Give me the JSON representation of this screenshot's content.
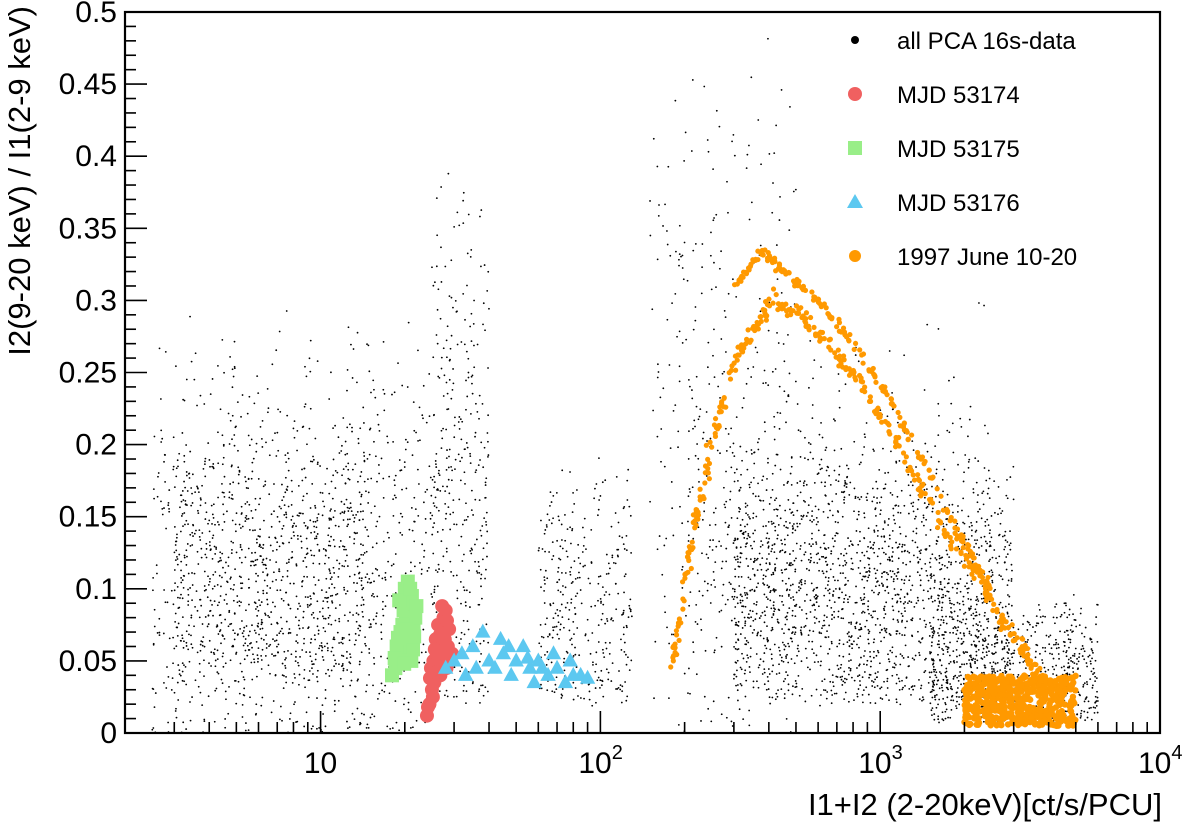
{
  "chart_data": {
    "type": "scatter",
    "title": "",
    "xlabel": "I1+I2 (2-20keV)[ct/s/PCU]",
    "ylabel": "I2(9-20 keV) / I1(2-9 keV)",
    "xscale": "log",
    "xlim": [
      2,
      10000
    ],
    "ylim": [
      0,
      0.5
    ],
    "x_ticks": [
      {
        "value": 10,
        "label": "10",
        "exp": ""
      },
      {
        "value": 100,
        "label": "10",
        "exp": "2"
      },
      {
        "value": 1000,
        "label": "10",
        "exp": "3"
      },
      {
        "value": 10000,
        "label": "10",
        "exp": "4"
      }
    ],
    "y_ticks": [
      {
        "value": 0,
        "label": "0"
      },
      {
        "value": 0.05,
        "label": "0.05"
      },
      {
        "value": 0.1,
        "label": "0.1"
      },
      {
        "value": 0.15,
        "label": "0.15"
      },
      {
        "value": 0.2,
        "label": "0.2"
      },
      {
        "value": 0.25,
        "label": "0.25"
      },
      {
        "value": 0.3,
        "label": "0.3"
      },
      {
        "value": 0.35,
        "label": "0.35"
      },
      {
        "value": 0.4,
        "label": "0.4"
      },
      {
        "value": 0.45,
        "label": "0.45"
      },
      {
        "value": 0.5,
        "label": "0.5"
      }
    ],
    "grid": false,
    "legend_position": "top-right",
    "series": [
      {
        "name": "all PCA 16s-data",
        "marker": "dot",
        "color": "#000000",
        "clusters": [
          {
            "x_range": [
              2.5,
              25
            ],
            "y_range": [
              0.0,
              0.3
            ],
            "count": 900
          },
          {
            "x_range": [
              3,
              15
            ],
            "y_range": [
              0.05,
              0.22
            ],
            "count": 700
          },
          {
            "x_range": [
              25,
              40
            ],
            "y_range": [
              0.02,
              0.4
            ],
            "count": 350
          },
          {
            "x_range": [
              60,
              130
            ],
            "y_range": [
              0.03,
              0.2
            ],
            "count": 350
          },
          {
            "x_range": [
              150,
              500
            ],
            "y_range": [
              0.0,
              0.5
            ],
            "count": 300
          },
          {
            "x_range": [
              300,
              3000
            ],
            "y_range": [
              0.03,
              0.2
            ],
            "count": 1500
          },
          {
            "x_range": [
              1500,
              6000
            ],
            "y_range": [
              0.01,
              0.1
            ],
            "count": 700
          },
          {
            "x_range": [
              200,
              2500
            ],
            "y_range": [
              0.1,
              0.3
            ],
            "count": 500
          }
        ]
      },
      {
        "name": "MJD 53174",
        "marker": "circle",
        "color": "#f06060",
        "points": [
          [
            24,
            0.012
          ],
          [
            24.5,
            0.02
          ],
          [
            25,
            0.03
          ],
          [
            25.5,
            0.035
          ],
          [
            24.8,
            0.045
          ],
          [
            25.3,
            0.05
          ],
          [
            26,
            0.055
          ],
          [
            26.5,
            0.06
          ],
          [
            25.8,
            0.065
          ],
          [
            27,
            0.07
          ],
          [
            26.3,
            0.075
          ],
          [
            27.5,
            0.08
          ],
          [
            28,
            0.085
          ],
          [
            27.2,
            0.088
          ],
          [
            28.5,
            0.06
          ],
          [
            29,
            0.05
          ],
          [
            28.2,
            0.045
          ],
          [
            26.8,
            0.04
          ],
          [
            25.2,
            0.025
          ],
          [
            24.2,
            0.018
          ],
          [
            27.8,
            0.065
          ],
          [
            29.5,
            0.055
          ],
          [
            26.1,
            0.048
          ],
          [
            28.8,
            0.072
          ],
          [
            25.6,
            0.058
          ],
          [
            27.1,
            0.052
          ],
          [
            24.6,
            0.038
          ],
          [
            28.3,
            0.078
          ],
          [
            26.7,
            0.068
          ],
          [
            25.9,
            0.042
          ]
        ]
      },
      {
        "name": "MJD 53175",
        "marker": "square",
        "color": "#99ee88",
        "points": [
          [
            18,
            0.04
          ],
          [
            18.5,
            0.045
          ],
          [
            19,
            0.05
          ],
          [
            19.5,
            0.055
          ],
          [
            20,
            0.06
          ],
          [
            20.5,
            0.065
          ],
          [
            21,
            0.07
          ],
          [
            21.5,
            0.075
          ],
          [
            20.2,
            0.08
          ],
          [
            19.8,
            0.085
          ],
          [
            20.7,
            0.09
          ],
          [
            21.2,
            0.095
          ],
          [
            20,
            0.1
          ],
          [
            20.5,
            0.105
          ],
          [
            19.3,
            0.07
          ],
          [
            18.7,
            0.06
          ],
          [
            21.8,
            0.08
          ],
          [
            19.1,
            0.092
          ],
          [
            18.4,
            0.052
          ],
          [
            21.4,
            0.058
          ],
          [
            20.9,
            0.1
          ],
          [
            19.6,
            0.075
          ],
          [
            22,
            0.088
          ],
          [
            18.9,
            0.066
          ],
          [
            21.1,
            0.05
          ],
          [
            20.3,
            0.072
          ],
          [
            19.9,
            0.048
          ],
          [
            21.6,
            0.067
          ]
        ]
      },
      {
        "name": "MJD 53176",
        "marker": "triangle",
        "color": "#5cc8f0",
        "points": [
          [
            28,
            0.045
          ],
          [
            30,
            0.05
          ],
          [
            32,
            0.055
          ],
          [
            35,
            0.06
          ],
          [
            38,
            0.07
          ],
          [
            40,
            0.05
          ],
          [
            42,
            0.045
          ],
          [
            45,
            0.055
          ],
          [
            48,
            0.04
          ],
          [
            50,
            0.05
          ],
          [
            53,
            0.06
          ],
          [
            56,
            0.045
          ],
          [
            60,
            0.05
          ],
          [
            65,
            0.04
          ],
          [
            70,
            0.045
          ],
          [
            75,
            0.035
          ],
          [
            80,
            0.04
          ],
          [
            85,
            0.04
          ],
          [
            90,
            0.038
          ],
          [
            36,
            0.045
          ],
          [
            44,
            0.065
          ],
          [
            58,
            0.035
          ],
          [
            68,
            0.055
          ],
          [
            33,
            0.04
          ],
          [
            47,
            0.06
          ],
          [
            62,
            0.045
          ],
          [
            78,
            0.05
          ],
          [
            55,
            0.052
          ]
        ]
      },
      {
        "name": "1997 June 10-20",
        "marker": "dot",
        "color": "#ff9900",
        "arc": [
          [
            180,
            0.05
          ],
          [
            200,
            0.1
          ],
          [
            220,
            0.15
          ],
          [
            250,
            0.2
          ],
          [
            290,
            0.25
          ],
          [
            350,
            0.28
          ],
          [
            420,
            0.3
          ],
          [
            520,
            0.29
          ],
          [
            650,
            0.27
          ],
          [
            800,
            0.25
          ],
          [
            1000,
            0.22
          ],
          [
            1300,
            0.18
          ],
          [
            1700,
            0.14
          ],
          [
            2200,
            0.11
          ],
          [
            2700,
            0.08
          ],
          [
            3200,
            0.06
          ],
          [
            3700,
            0.04
          ],
          [
            4200,
            0.025
          ]
        ],
        "arc_upper": [
          [
            300,
            0.31
          ],
          [
            380,
            0.335
          ],
          [
            450,
            0.32
          ],
          [
            600,
            0.3
          ],
          [
            800,
            0.27
          ],
          [
            1100,
            0.23
          ],
          [
            1500,
            0.18
          ],
          [
            2000,
            0.13
          ],
          [
            2500,
            0.1
          ]
        ],
        "blob": {
          "x_range": [
            2000,
            5000
          ],
          "y_range": [
            0.005,
            0.04
          ]
        }
      }
    ]
  }
}
